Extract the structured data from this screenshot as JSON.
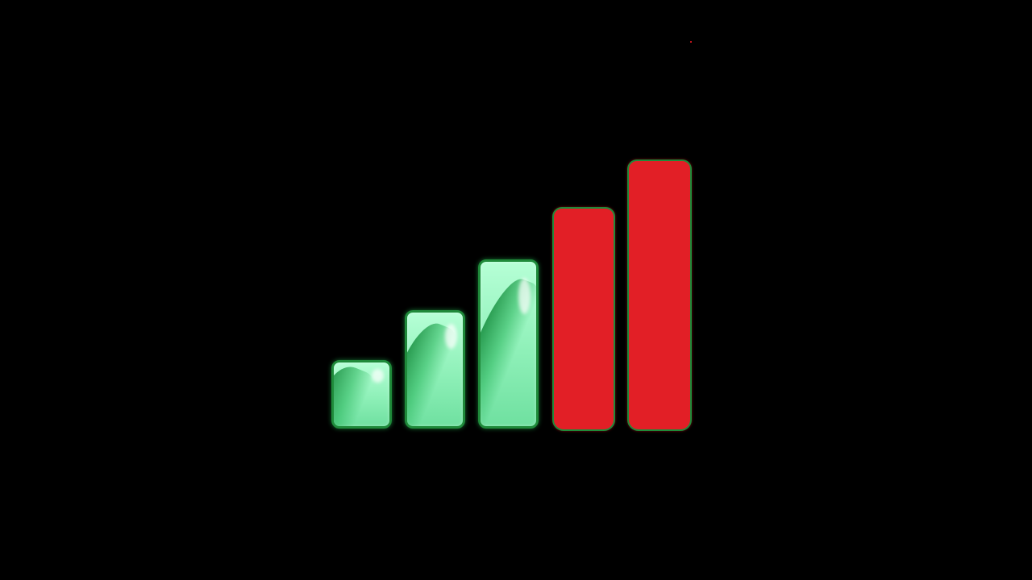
{
  "signal_indicator": {
    "total_bars": 5,
    "active_bars": 3,
    "bars": [
      {
        "state": "on"
      },
      {
        "state": "on"
      },
      {
        "state": "on"
      },
      {
        "state": "off"
      },
      {
        "state": "off"
      }
    ]
  },
  "colors": {
    "background": "#000000",
    "active_fill": "#8ef0b8",
    "active_border": "#1f8a3a",
    "inactive_fill": "#e21f26"
  }
}
